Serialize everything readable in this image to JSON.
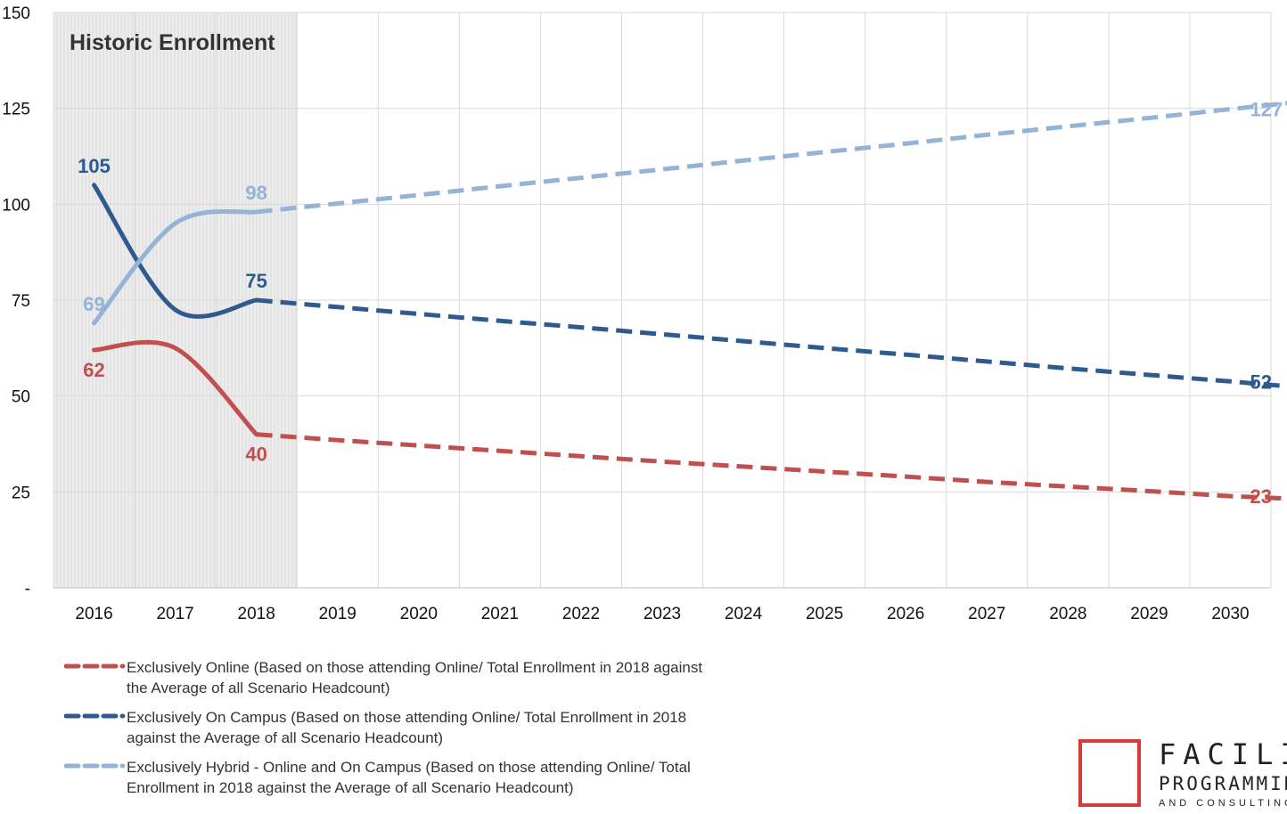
{
  "chart_data": {
    "type": "line",
    "x": [
      "2016",
      "2017",
      "2018",
      "2019",
      "2020",
      "2021",
      "2022",
      "2023",
      "2024",
      "2025",
      "2026",
      "2027",
      "2028",
      "2029",
      "2030"
    ],
    "yticks": [
      "150",
      "125",
      "100",
      "75",
      "50",
      "25",
      "-"
    ],
    "ylim": [
      0,
      150
    ],
    "grid": true,
    "legend_position": "bottom-left",
    "shaded_region_label": "Historic Enrollment",
    "shaded_region_x": [
      "2016",
      "2018"
    ],
    "series": [
      {
        "name": "Exclusively Online  (Based on those attending Online/ Total Enrollment in 2018 against the Average of all Scenario Headcount)",
        "color": "#c0504d",
        "historic": [
          62,
          62.5,
          40
        ],
        "projected": [
          40,
          38.5,
          37.1,
          35.7,
          34.3,
          32.9,
          31.6,
          30.3,
          29.0,
          27.6,
          26.4,
          25.2,
          23.9,
          23
        ],
        "labels": [
          {
            "x": "2016",
            "text": "62"
          },
          {
            "x": "2018",
            "text": "40"
          },
          {
            "x": "2030",
            "text": "23"
          }
        ]
      },
      {
        "name": "Exclusively On Campus (Based on those attending Online/ Total Enrollment in 2018 against the Average of all Scenario Headcount)",
        "color": "#2e5a8e",
        "historic": [
          105,
          72.5,
          75
        ],
        "projected": [
          75,
          73.2,
          71.4,
          69.6,
          67.9,
          66.1,
          64.3,
          62.5,
          60.8,
          59.0,
          57.2,
          55.5,
          53.8,
          52
        ],
        "labels": [
          {
            "x": "2016",
            "text": "105"
          },
          {
            "x": "2018",
            "text": "75"
          },
          {
            "x": "2030",
            "text": "52"
          }
        ]
      },
      {
        "name": "Exclusively Hybrid - Online and On Campus (Based on those attending Online/ Total Enrollment in 2018 against the Average of all Scenario Headcount)",
        "color": "#95b3d7",
        "historic": [
          69,
          95,
          98
        ],
        "projected": [
          98,
          100.2,
          102.4,
          104.7,
          106.9,
          109.1,
          111.4,
          113.6,
          115.8,
          118.1,
          120.3,
          122.5,
          124.8,
          127
        ],
        "labels": [
          {
            "x": "2016",
            "text": "69"
          },
          {
            "x": "2018",
            "text": "98"
          },
          {
            "x": "2030",
            "text": "127"
          }
        ]
      }
    ]
  },
  "logo": {
    "line1": "FACILITY",
    "line2": "PROGRAMMING",
    "line3": "AND CONSULTING"
  }
}
